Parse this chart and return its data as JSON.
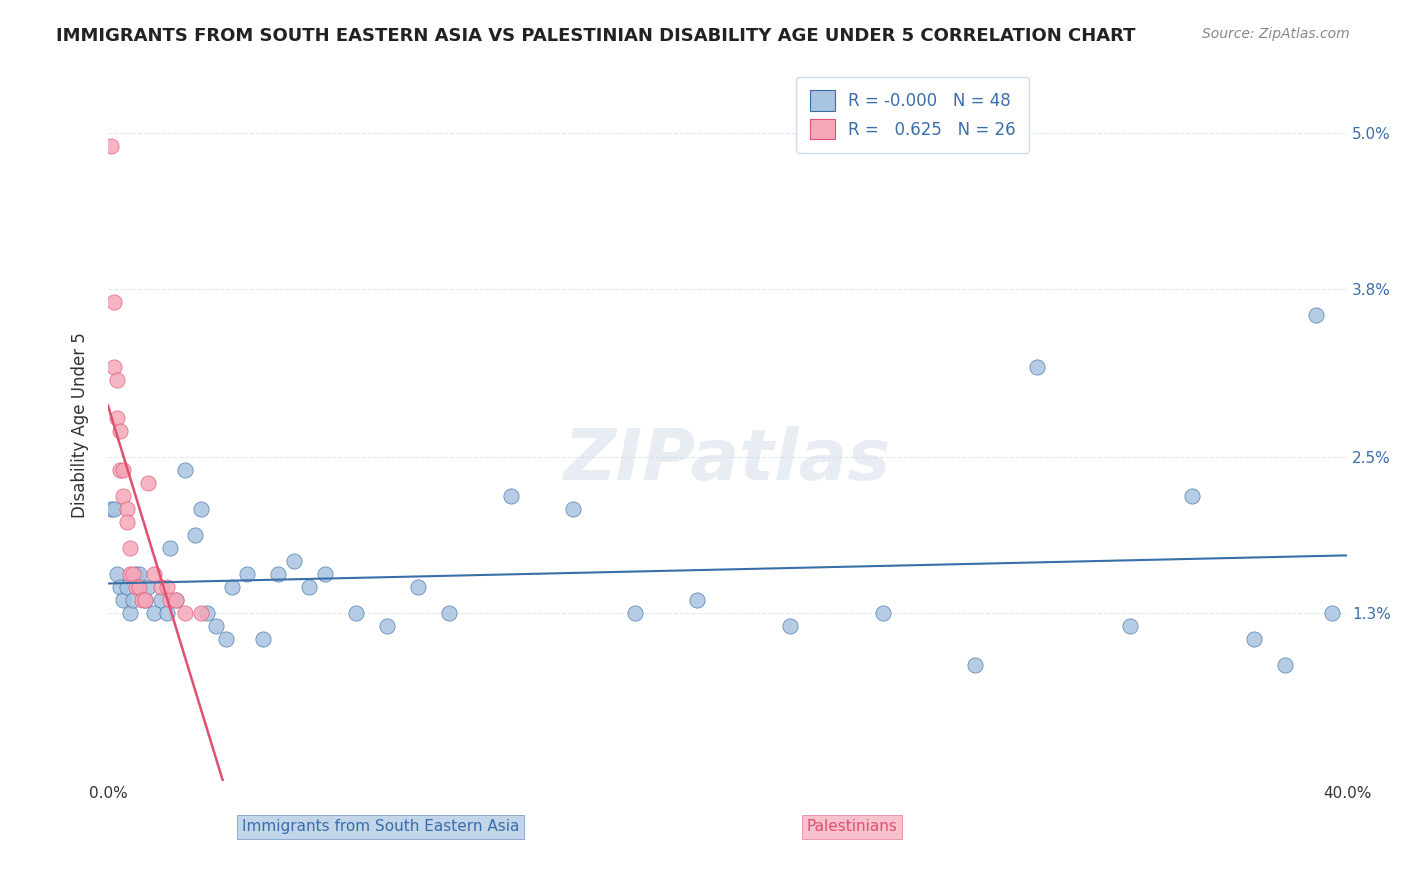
{
  "title": "IMMIGRANTS FROM SOUTH EASTERN ASIA VS PALESTINIAN DISABILITY AGE UNDER 5 CORRELATION CHART",
  "source": "Source: ZipAtlas.com",
  "xlabel": "",
  "ylabel": "Disability Age Under 5",
  "xlim": [
    0.0,
    0.4
  ],
  "ylim": [
    0.0,
    0.055
  ],
  "yticks": [
    0.013,
    0.025,
    0.038,
    0.05
  ],
  "ytick_labels": [
    "1.3%",
    "2.5%",
    "3.8%",
    "5.0%"
  ],
  "xticks": [
    0.0,
    0.1,
    0.2,
    0.3,
    0.4
  ],
  "xtick_labels": [
    "0.0%",
    "",
    "",
    "",
    "40.0%"
  ],
  "blue_color": "#a8c4e0",
  "pink_color": "#f4a8b8",
  "blue_line_color": "#3a6ea8",
  "pink_line_color": "#e05070",
  "trend_line_blue_color": "#3a6ea8",
  "trend_line_pink_color": "#e05070",
  "legend_box_color": "#f0f4f8",
  "r_blue": "-0.000",
  "n_blue": 48,
  "r_pink": "0.625",
  "n_pink": 26,
  "blue_scatter_x": [
    0.001,
    0.002,
    0.003,
    0.004,
    0.005,
    0.006,
    0.007,
    0.008,
    0.009,
    0.01,
    0.012,
    0.013,
    0.015,
    0.017,
    0.019,
    0.02,
    0.022,
    0.025,
    0.028,
    0.03,
    0.032,
    0.035,
    0.038,
    0.04,
    0.045,
    0.05,
    0.055,
    0.06,
    0.065,
    0.07,
    0.08,
    0.09,
    0.1,
    0.11,
    0.13,
    0.15,
    0.17,
    0.19,
    0.22,
    0.25,
    0.28,
    0.3,
    0.33,
    0.35,
    0.37,
    0.38,
    0.39,
    0.395
  ],
  "blue_scatter_y": [
    0.021,
    0.021,
    0.016,
    0.015,
    0.014,
    0.015,
    0.013,
    0.014,
    0.016,
    0.016,
    0.014,
    0.015,
    0.013,
    0.014,
    0.013,
    0.018,
    0.014,
    0.024,
    0.019,
    0.021,
    0.013,
    0.012,
    0.011,
    0.015,
    0.016,
    0.011,
    0.016,
    0.017,
    0.015,
    0.016,
    0.013,
    0.012,
    0.015,
    0.013,
    0.022,
    0.021,
    0.013,
    0.014,
    0.012,
    0.013,
    0.009,
    0.032,
    0.012,
    0.022,
    0.011,
    0.009,
    0.036,
    0.013
  ],
  "pink_scatter_x": [
    0.001,
    0.002,
    0.002,
    0.003,
    0.003,
    0.004,
    0.004,
    0.005,
    0.005,
    0.006,
    0.006,
    0.007,
    0.007,
    0.008,
    0.009,
    0.01,
    0.011,
    0.012,
    0.013,
    0.015,
    0.017,
    0.019,
    0.02,
    0.022,
    0.025,
    0.03
  ],
  "pink_scatter_y": [
    0.049,
    0.037,
    0.032,
    0.031,
    0.028,
    0.027,
    0.024,
    0.024,
    0.022,
    0.021,
    0.02,
    0.018,
    0.016,
    0.016,
    0.015,
    0.015,
    0.014,
    0.014,
    0.023,
    0.016,
    0.015,
    0.015,
    0.014,
    0.014,
    0.013,
    0.013
  ],
  "watermark": "ZIPatlas",
  "grid_color": "#e0e8f0",
  "background_color": "#ffffff"
}
